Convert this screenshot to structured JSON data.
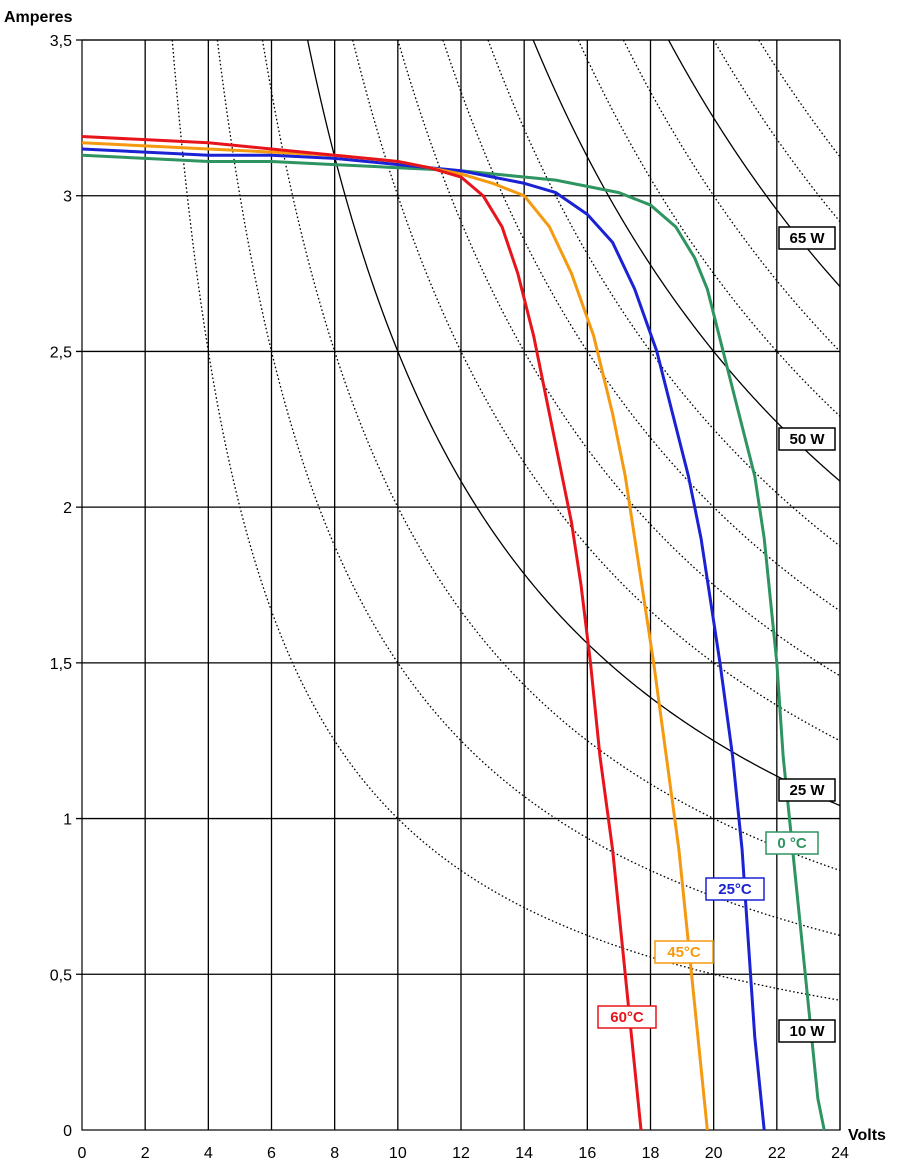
{
  "chart_data": {
    "type": "line",
    "title": "",
    "xlabel": "Volts",
    "ylabel": "Amperes",
    "xlim": [
      0,
      24
    ],
    "ylim": [
      0,
      3.5
    ],
    "x_ticks": [
      "0",
      "2",
      "4",
      "6",
      "8",
      "10",
      "12",
      "14",
      "16",
      "18",
      "20",
      "22",
      "24"
    ],
    "y_ticks": [
      "0",
      "0,5",
      "1",
      "1,5",
      "2",
      "2,5",
      "3",
      "3,5"
    ],
    "grid": true,
    "series": [
      {
        "name": "0 °C",
        "color": "#2e9460",
        "points": [
          [
            0,
            3.13
          ],
          [
            2,
            3.12
          ],
          [
            4,
            3.11
          ],
          [
            6,
            3.11
          ],
          [
            8,
            3.1
          ],
          [
            10,
            3.09
          ],
          [
            12,
            3.08
          ],
          [
            14,
            3.06
          ],
          [
            15,
            3.05
          ],
          [
            16,
            3.03
          ],
          [
            17,
            3.01
          ],
          [
            18,
            2.97
          ],
          [
            18.8,
            2.9
          ],
          [
            19.4,
            2.8
          ],
          [
            19.8,
            2.7
          ],
          [
            20.3,
            2.5
          ],
          [
            20.8,
            2.3
          ],
          [
            21.3,
            2.1
          ],
          [
            21.6,
            1.9
          ],
          [
            21.8,
            1.7
          ],
          [
            22.0,
            1.5
          ],
          [
            22.2,
            1.2
          ],
          [
            22.5,
            0.9
          ],
          [
            22.8,
            0.6
          ],
          [
            23.1,
            0.3
          ],
          [
            23.3,
            0.1
          ],
          [
            23.5,
            0
          ]
        ]
      },
      {
        "name": "25°C",
        "color": "#1a22d4",
        "points": [
          [
            0,
            3.15
          ],
          [
            2,
            3.14
          ],
          [
            4,
            3.13
          ],
          [
            6,
            3.13
          ],
          [
            8,
            3.12
          ],
          [
            10,
            3.1
          ],
          [
            12,
            3.08
          ],
          [
            13,
            3.06
          ],
          [
            14,
            3.04
          ],
          [
            15,
            3.01
          ],
          [
            16,
            2.94
          ],
          [
            16.8,
            2.85
          ],
          [
            17.5,
            2.7
          ],
          [
            18.2,
            2.5
          ],
          [
            18.7,
            2.3
          ],
          [
            19.2,
            2.1
          ],
          [
            19.6,
            1.9
          ],
          [
            19.9,
            1.7
          ],
          [
            20.2,
            1.5
          ],
          [
            20.6,
            1.2
          ],
          [
            20.9,
            0.9
          ],
          [
            21.1,
            0.6
          ],
          [
            21.3,
            0.3
          ],
          [
            21.5,
            0.1
          ],
          [
            21.6,
            0
          ]
        ]
      },
      {
        "name": "45°C",
        "color": "#f59a10",
        "points": [
          [
            0,
            3.17
          ],
          [
            2,
            3.16
          ],
          [
            4,
            3.15
          ],
          [
            6,
            3.14
          ],
          [
            8,
            3.13
          ],
          [
            10,
            3.11
          ],
          [
            11,
            3.09
          ],
          [
            12,
            3.07
          ],
          [
            13,
            3.04
          ],
          [
            14,
            3.0
          ],
          [
            14.8,
            2.9
          ],
          [
            15.5,
            2.75
          ],
          [
            16.2,
            2.55
          ],
          [
            16.8,
            2.3
          ],
          [
            17.2,
            2.1
          ],
          [
            17.5,
            1.9
          ],
          [
            17.8,
            1.7
          ],
          [
            18.1,
            1.5
          ],
          [
            18.5,
            1.2
          ],
          [
            18.9,
            0.9
          ],
          [
            19.2,
            0.6
          ],
          [
            19.5,
            0.3
          ],
          [
            19.7,
            0.1
          ],
          [
            19.8,
            0
          ]
        ]
      },
      {
        "name": "60°C",
        "color": "#e8141c",
        "points": [
          [
            0,
            3.19
          ],
          [
            2,
            3.18
          ],
          [
            4,
            3.17
          ],
          [
            6,
            3.15
          ],
          [
            8,
            3.13
          ],
          [
            10,
            3.11
          ],
          [
            11,
            3.09
          ],
          [
            12,
            3.06
          ],
          [
            12.7,
            3.0
          ],
          [
            13.3,
            2.9
          ],
          [
            13.8,
            2.75
          ],
          [
            14.3,
            2.55
          ],
          [
            14.7,
            2.35
          ],
          [
            15.1,
            2.15
          ],
          [
            15.5,
            1.95
          ],
          [
            15.8,
            1.75
          ],
          [
            16.1,
            1.5
          ],
          [
            16.4,
            1.2
          ],
          [
            16.8,
            0.9
          ],
          [
            17.1,
            0.6
          ],
          [
            17.4,
            0.3
          ],
          [
            17.6,
            0.1
          ],
          [
            17.7,
            0
          ]
        ]
      }
    ],
    "power_curves": [
      {
        "name": "65 W",
        "watts": 65,
        "style": "solid"
      },
      {
        "name": "50 W",
        "watts": 50,
        "style": "solid"
      },
      {
        "name": "25 W",
        "watts": 25,
        "style": "solid"
      },
      {
        "name": "10 W",
        "watts": 10,
        "style": "dotted"
      },
      {
        "name": "",
        "watts": 15,
        "style": "dotted"
      },
      {
        "name": "",
        "watts": 20,
        "style": "dotted"
      },
      {
        "name": "",
        "watts": 30,
        "style": "dotted"
      },
      {
        "name": "",
        "watts": 35,
        "style": "dotted"
      },
      {
        "name": "",
        "watts": 40,
        "style": "dotted"
      },
      {
        "name": "",
        "watts": 45,
        "style": "dotted"
      },
      {
        "name": "",
        "watts": 55,
        "style": "dotted"
      },
      {
        "name": "",
        "watts": 60,
        "style": "dotted"
      },
      {
        "name": "",
        "watts": 70,
        "style": "dotted"
      },
      {
        "name": "",
        "watts": 75,
        "style": "dotted"
      }
    ],
    "series_labels": [
      {
        "text": "0 °C",
        "color": "#2e9460"
      },
      {
        "text": "25°C",
        "color": "#1a22d4"
      },
      {
        "text": "45°C",
        "color": "#f59a10"
      },
      {
        "text": "60°C",
        "color": "#e8141c"
      }
    ],
    "power_labels": [
      {
        "text": "65 W"
      },
      {
        "text": "50 W"
      },
      {
        "text": "25 W"
      },
      {
        "text": "10 W"
      }
    ]
  }
}
